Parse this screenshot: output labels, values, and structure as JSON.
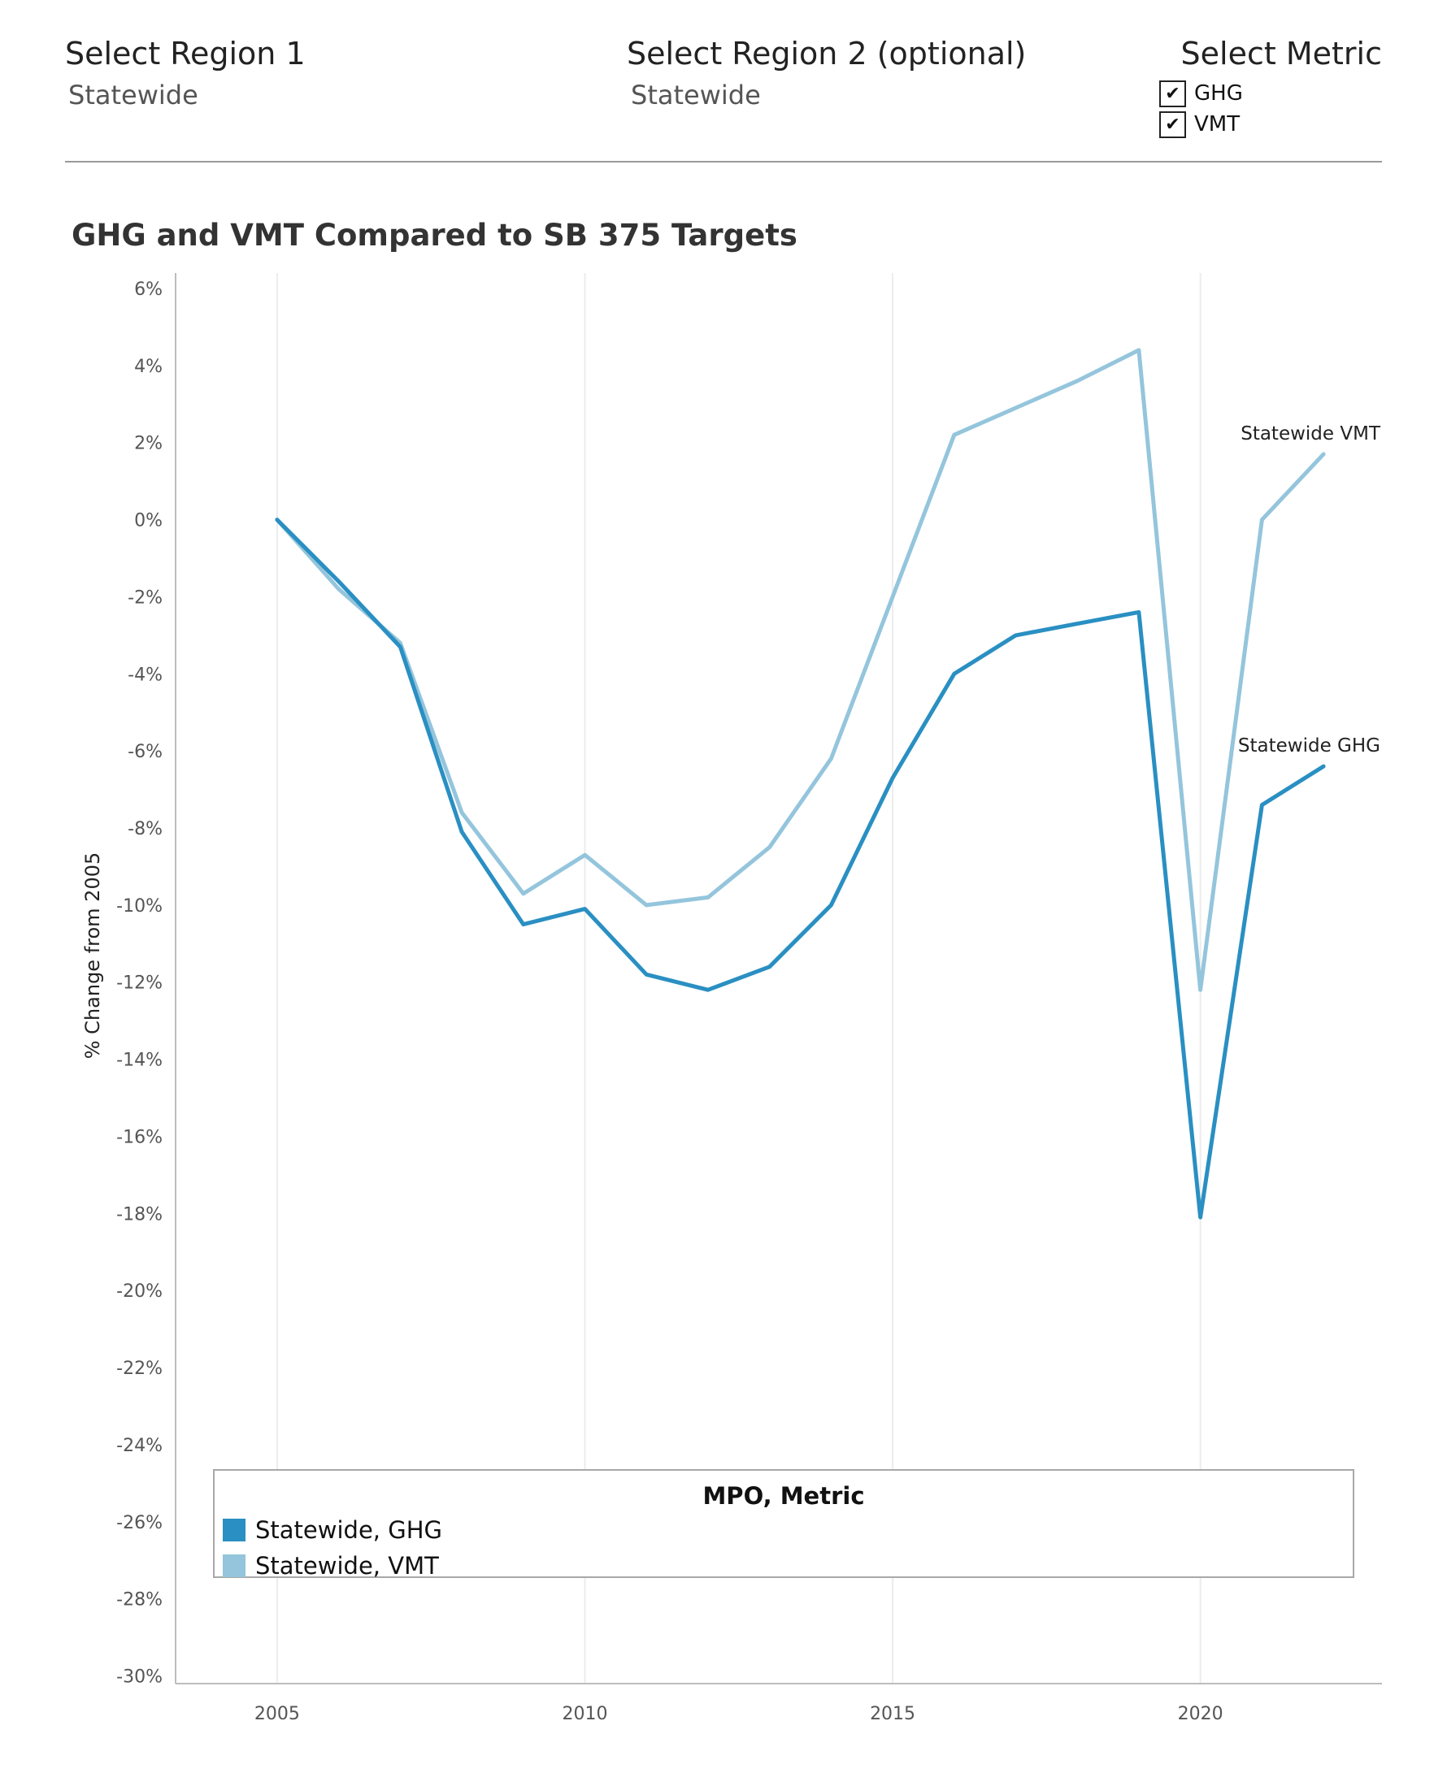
{
  "filters": {
    "region1": {
      "label": "Select Region 1",
      "value": "Statewide"
    },
    "region2": {
      "label": "Select Region 2 (optional)",
      "value": "Statewide"
    },
    "metric": {
      "label": "Select Metric",
      "options": [
        {
          "label": "GHG",
          "checked": true
        },
        {
          "label": "VMT",
          "checked": true
        }
      ],
      "check_glyph": "✔"
    }
  },
  "colors": {
    "ghg": "#2a8fc2",
    "vmt": "#94c5dc",
    "grid": "#ececec",
    "axis": "#bdbdbd",
    "tick_text": "#555555"
  },
  "chart_data": {
    "type": "line",
    "title": "GHG and VMT Compared to SB 375 Targets",
    "xlabel": "",
    "ylabel": "% Change from 2005",
    "xlim": [
      2003.35,
      2022.95
    ],
    "ylim": [
      -30.2,
      6.4
    ],
    "x_ticks": [
      2005,
      2010,
      2015,
      2020
    ],
    "y_ticks": [
      6,
      4,
      2,
      0,
      -2,
      -4,
      -6,
      -8,
      -10,
      -12,
      -14,
      -16,
      -18,
      -20,
      -22,
      -24,
      -26,
      -28,
      -30
    ],
    "y_tick_labels": [
      "6%",
      "4%",
      "2%",
      "0%",
      "-2%",
      "-4%",
      "-6%",
      "-8%",
      "-10%",
      "-12%",
      "-14%",
      "-16%",
      "-18%",
      "-20%",
      "-22%",
      "-24%",
      "-26%",
      "-28%",
      "-30%"
    ],
    "x_grid": true,
    "y_grid": false,
    "legend": {
      "title": "MPO, Metric",
      "position": "bottom",
      "entries": [
        "Statewide, GHG",
        "Statewide, VMT"
      ]
    },
    "x": [
      2005,
      2006,
      2007,
      2008,
      2009,
      2010,
      2011,
      2012,
      2013,
      2014,
      2015,
      2016,
      2017,
      2018,
      2019,
      2020,
      2021,
      2022
    ],
    "series": [
      {
        "name": "Statewide, GHG",
        "end_label": "Statewide GHG",
        "color": "#2a8fc2",
        "values": [
          0,
          -1.6,
          -3.3,
          -8.1,
          -10.5,
          -10.1,
          -11.8,
          -12.2,
          -11.6,
          -10.0,
          -6.7,
          -4.0,
          -3.0,
          -2.7,
          -2.4,
          -18.1,
          -7.4,
          -6.4
        ]
      },
      {
        "name": "Statewide, VMT",
        "end_label": "Statewide VMT",
        "color": "#94c5dc",
        "values": [
          0,
          -1.8,
          -3.2,
          -7.6,
          -9.7,
          -8.7,
          -10.0,
          -9.8,
          -8.5,
          -6.2,
          -2.0,
          2.2,
          2.9,
          3.6,
          4.4,
          -12.2,
          0.0,
          1.7
        ]
      }
    ]
  }
}
